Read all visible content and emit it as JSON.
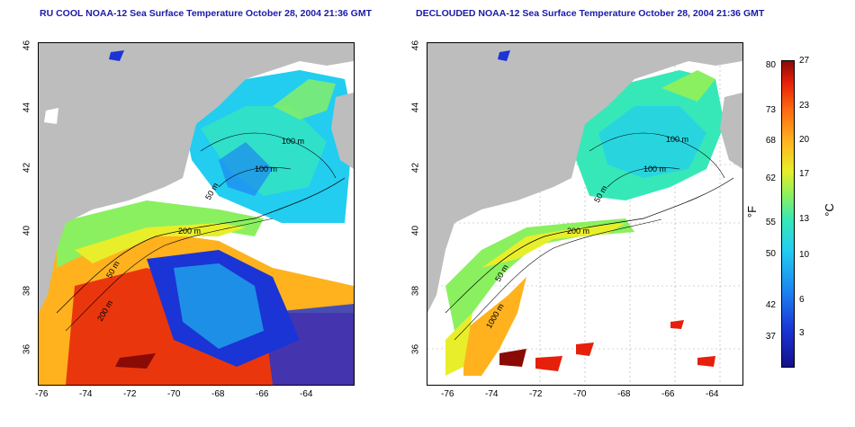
{
  "titles": {
    "left": "RU COOL NOAA-12 Sea Surface Temperature October 28, 2004 21:36 GMT",
    "right": "DECLOUDED NOAA-12 Sea Surface Temperature October 28, 2004 21:36 GMT"
  },
  "axes": {
    "x_ticks": [
      "-76",
      "-74",
      "-72",
      "-70",
      "-68",
      "-66",
      "-64"
    ],
    "y_ticks": [
      "36",
      "38",
      "40",
      "42",
      "44",
      "46"
    ]
  },
  "map_labels": {
    "left": [
      "100 m",
      "100 m",
      "50 m",
      "200 m",
      "50 m",
      "200 m"
    ],
    "right": [
      "100 m",
      "100 m",
      "50 m",
      "200 m",
      "50 m",
      "1000 m"
    ]
  },
  "colorbar": {
    "fahrenheit": [
      "80",
      "73",
      "68",
      "62",
      "55",
      "50",
      "42",
      "37"
    ],
    "celsius": [
      "27",
      "23",
      "20",
      "17",
      "13",
      "10",
      "6",
      "3"
    ],
    "unit_f": "°F",
    "unit_c": "°C"
  },
  "colors": {
    "land": "#bdbdbd",
    "cold": "#1a34d6",
    "cool": "#22cdf0",
    "mild": "#8af060",
    "warm": "#ffb21e",
    "hot": "#e6200a",
    "title": "#1a1aa8"
  }
}
